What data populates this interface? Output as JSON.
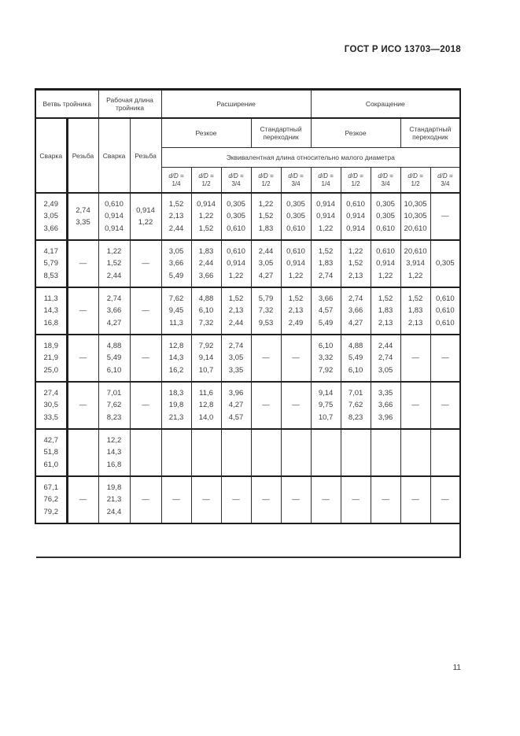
{
  "doc": {
    "standard_ref": "ГОСТ Р ИСО 13703—2018",
    "page_number": "11"
  },
  "table": {
    "head": {
      "branch": "Ветвь тройника",
      "working_length": "Рабочая длина тройника",
      "expansion": "Расширение",
      "contraction": "Сокращение",
      "weld": "Сварка",
      "thread": "Резьба",
      "sharp": "Резкое",
      "std_adapter": "Стандартный переходник",
      "equiv_length": "Эквивалентная длина относительно малого диаметра",
      "dd_prefix": "d/D =",
      "dd_fracs": [
        "1/4",
        "1/2",
        "3/4",
        "1/2",
        "3/4",
        "1/4",
        "1/2",
        "3/4",
        "1/2",
        "3/4"
      ]
    },
    "rows": [
      [
        [
          "2,49",
          "3,05",
          "3,66"
        ],
        [
          "2,74",
          "3,35"
        ],
        [
          "0,610",
          "0,914",
          "0,914"
        ],
        [
          "0,914",
          "1,22"
        ],
        [
          "1,52",
          "2,13",
          "2,44"
        ],
        [
          "0,914",
          "1,22",
          "1,52"
        ],
        [
          "0,305",
          "0,305",
          "0,610"
        ],
        [
          "1,22",
          "1,52",
          "1,83"
        ],
        [
          "0,305",
          "0,305",
          "0,610"
        ],
        [
          "0,914",
          "0,914",
          "1,22"
        ],
        [
          "0,610",
          "0,914",
          "0,914"
        ],
        [
          "0,305",
          "0,305",
          "0,610"
        ],
        [
          "10,305",
          "10,305",
          "20,610"
        ],
        [
          "—"
        ]
      ],
      [
        [
          "4,17",
          "5,79",
          "8,53"
        ],
        [
          "—"
        ],
        [
          "1,22",
          "1,52",
          "2,44"
        ],
        [
          "—"
        ],
        [
          "3,05",
          "3,66",
          "5,49"
        ],
        [
          "1,83",
          "2,44",
          "3,66"
        ],
        [
          "0,610",
          "0,914",
          "1,22"
        ],
        [
          "2,44",
          "3,05",
          "4,27"
        ],
        [
          "0,610",
          "0,914",
          "1,22"
        ],
        [
          "1,52",
          "1,83",
          "2,74"
        ],
        [
          "1,22",
          "1,52",
          "2,13"
        ],
        [
          "0,610",
          "0,914",
          "1,22"
        ],
        [
          "20,610",
          "3,914",
          "1,22"
        ],
        [
          "0,305"
        ]
      ],
      [
        [
          "11,3",
          "14,3",
          "16,8"
        ],
        [
          "—"
        ],
        [
          "2,74",
          "3,66",
          "4,27"
        ],
        [
          "—"
        ],
        [
          "7,62",
          "9,45",
          "11,3"
        ],
        [
          "4,88",
          "6,10",
          "7,32"
        ],
        [
          "1,52",
          "2,13",
          "2,44"
        ],
        [
          "5,79",
          "7,32",
          "9,53"
        ],
        [
          "1,52",
          "2,13",
          "2,49"
        ],
        [
          "3,66",
          "4,57",
          "5,49"
        ],
        [
          "2,74",
          "3,66",
          "4,27"
        ],
        [
          "1,52",
          "1,83",
          "2,13"
        ],
        [
          "1,52",
          "1,83",
          "2,13"
        ],
        [
          "0,610",
          "0,610",
          "0,610"
        ]
      ],
      [
        [
          "18,9",
          "21,9",
          "25,0"
        ],
        [
          "—"
        ],
        [
          "4,88",
          "5,49",
          "6,10"
        ],
        [
          "—"
        ],
        [
          "12,8",
          "14,3",
          "16,2"
        ],
        [
          "7,92",
          "9,14",
          "10,7"
        ],
        [
          "2,74",
          "3,05",
          "3,35"
        ],
        [
          "—"
        ],
        [
          "—"
        ],
        [
          "6,10",
          "3,32",
          "7,92"
        ],
        [
          "4,88",
          "5,49",
          "6,10"
        ],
        [
          "2,44",
          "2,74",
          "3,05"
        ],
        [
          "—"
        ],
        [
          "—"
        ]
      ],
      [
        [
          "27,4",
          "30,5",
          "33,5"
        ],
        [
          "—"
        ],
        [
          "7,01",
          "7,62",
          "8,23"
        ],
        [
          "—"
        ],
        [
          "18,3",
          "19,8",
          "21,3"
        ],
        [
          "11,6",
          "12,8",
          "14,0"
        ],
        [
          "3,96",
          "4,27",
          "4,57"
        ],
        [
          "—"
        ],
        [
          "—"
        ],
        [
          "9,14",
          "9,75",
          "10,7"
        ],
        [
          "7,01",
          "7,62",
          "8,23"
        ],
        [
          "3,35",
          "3,66",
          "3,96"
        ],
        [
          "—"
        ],
        [
          "—"
        ]
      ],
      [
        [
          "42,7",
          "51,8",
          "61,0"
        ],
        [],
        [
          "12,2",
          "14,3",
          "16,8"
        ],
        [],
        [],
        [],
        [],
        [],
        [],
        [],
        [],
        [],
        [],
        []
      ],
      [
        [
          "67,1",
          "76,2",
          "79,2"
        ],
        [
          "—"
        ],
        [
          "19,8",
          "21,3",
          "24,4"
        ],
        [
          "—"
        ],
        [
          "—"
        ],
        [
          "—"
        ],
        [
          "—"
        ],
        [
          "—"
        ],
        [
          "—"
        ],
        [
          "—"
        ],
        [
          "—"
        ],
        [
          "—"
        ],
        [
          "—"
        ],
        [
          "—"
        ]
      ]
    ]
  }
}
